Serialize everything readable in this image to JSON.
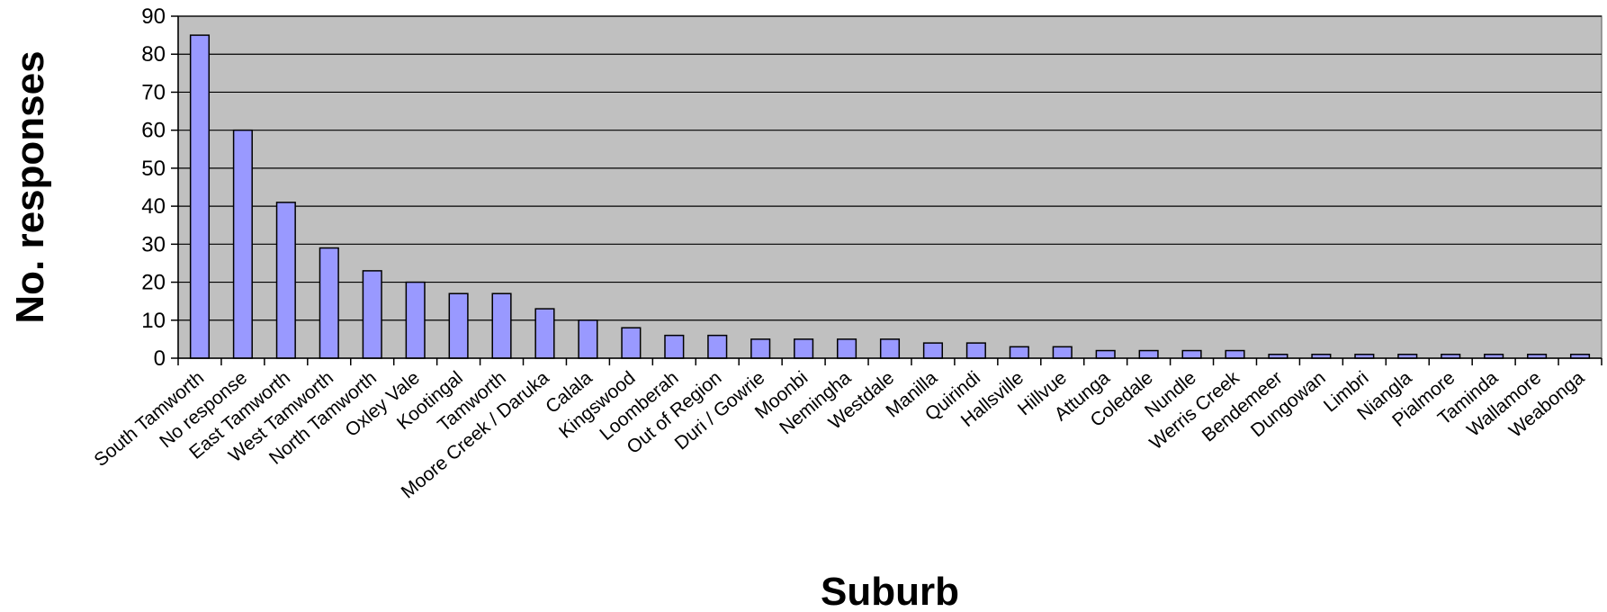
{
  "chart_data": {
    "type": "bar",
    "xlabel": "Suburb",
    "ylabel": "No. responses",
    "ylim": [
      0,
      90
    ],
    "yticks": [
      0,
      10,
      20,
      30,
      40,
      50,
      60,
      70,
      80,
      90
    ],
    "grid": true,
    "plot_background": "#c0c0c0",
    "bar_color": "#9999ff",
    "categories": [
      "South Tamworth",
      "No response",
      "East Tamworth",
      "West Tamworth",
      "North Tamworth",
      "Oxley Vale",
      "Kootingal",
      "Tamworth",
      "Moore Creek / Daruka",
      "Calala",
      "Kingswood",
      "Loomberah",
      "Out of Region",
      "Duri / Gowrie",
      "Moonbi",
      "Nemingha",
      "Westdale",
      "Manilla",
      "Quirindi",
      "Hallsville",
      "Hillvue",
      "Attunga",
      "Coledale",
      "Nundle",
      "Werris Creek",
      "Bendemeer",
      "Dungowan",
      "Limbri",
      "Niangla",
      "Pialmore",
      "Taminda",
      "Wallamore",
      "Weabonga"
    ],
    "values": [
      85,
      60,
      41,
      29,
      23,
      20,
      17,
      17,
      13,
      10,
      8,
      6,
      6,
      5,
      5,
      5,
      5,
      4,
      4,
      3,
      3,
      2,
      2,
      2,
      2,
      1,
      1,
      1,
      1,
      1,
      1,
      1,
      1
    ]
  }
}
